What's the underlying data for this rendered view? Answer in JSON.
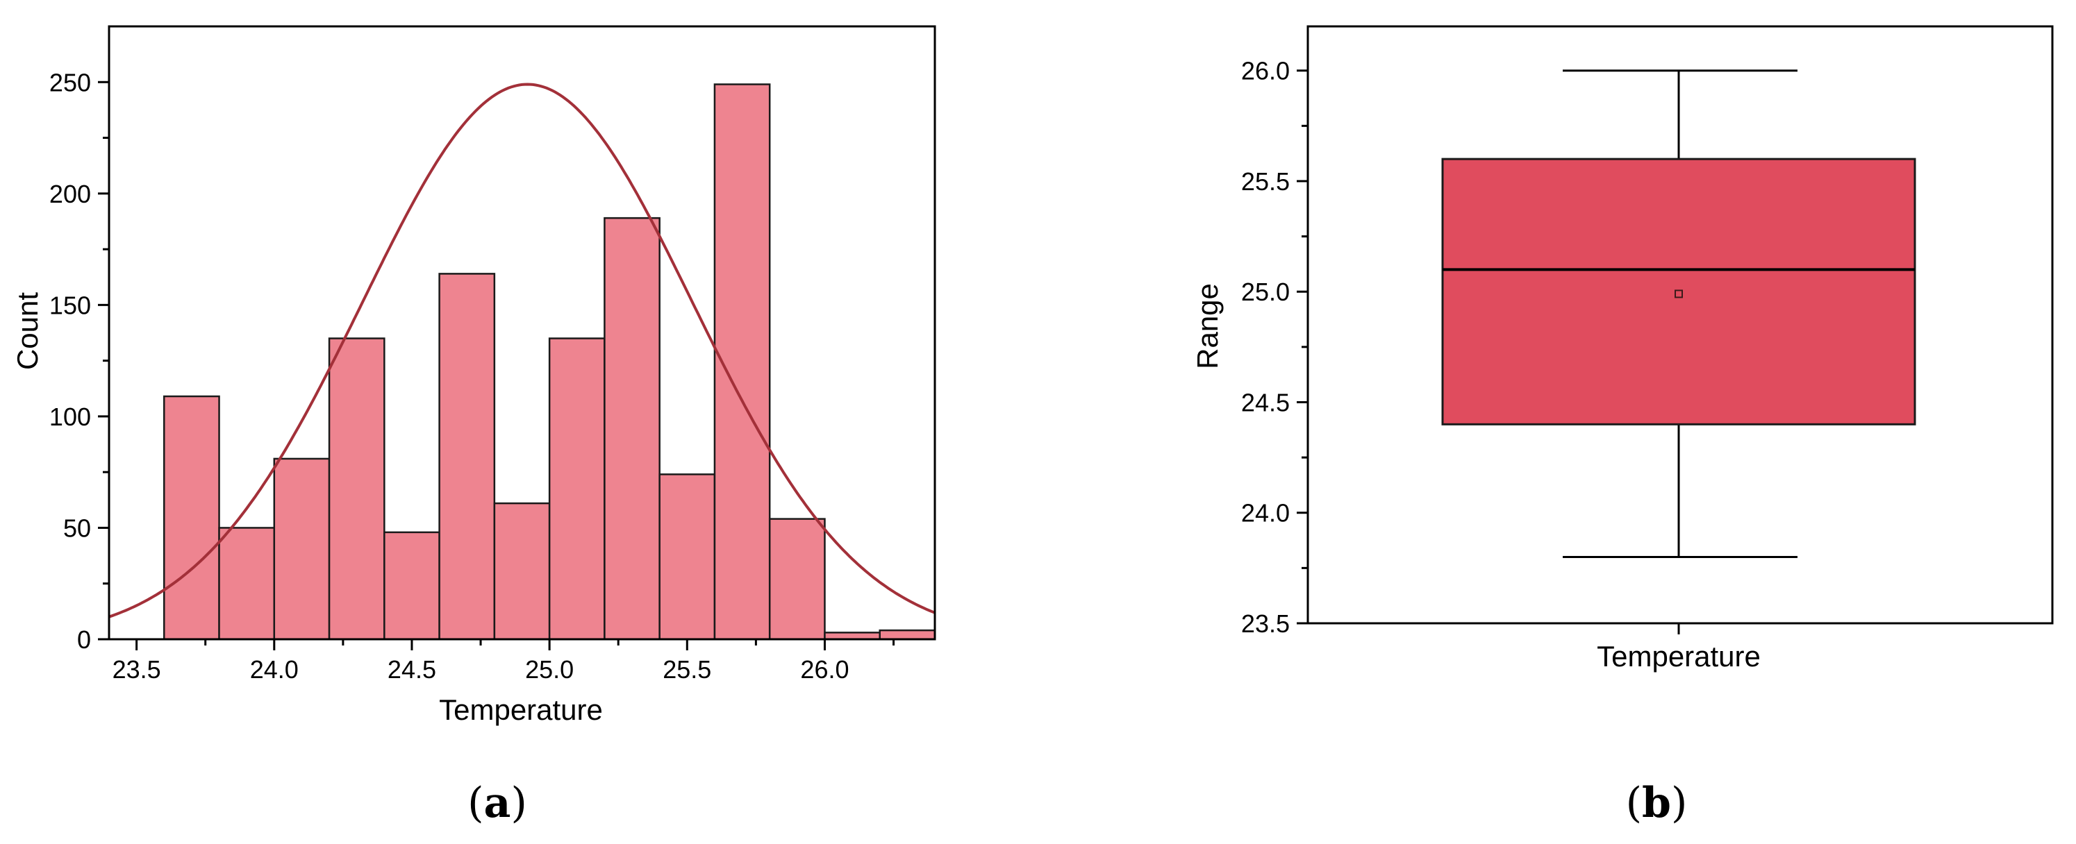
{
  "chart_data": [
    {
      "type": "bar",
      "subtype": "histogram",
      "panel_label": {
        "open": "(",
        "letter": "a",
        "close": ")"
      },
      "xlabel": "Temperature",
      "ylabel": "Count",
      "xlim": [
        23.4,
        26.4
      ],
      "ylim": [
        0,
        275
      ],
      "xticks": [
        "23.5",
        "24.0",
        "24.5",
        "25.0",
        "25.5",
        "26.0"
      ],
      "yticks": [
        "0",
        "50",
        "100",
        "150",
        "200",
        "250"
      ],
      "bins": [
        {
          "x0": 23.6,
          "x1": 23.8,
          "count": 109
        },
        {
          "x0": 23.8,
          "x1": 24.0,
          "count": 50
        },
        {
          "x0": 24.0,
          "x1": 24.2,
          "count": 81
        },
        {
          "x0": 24.2,
          "x1": 24.4,
          "count": 135
        },
        {
          "x0": 24.4,
          "x1": 24.6,
          "count": 48
        },
        {
          "x0": 24.6,
          "x1": 24.8,
          "count": 164
        },
        {
          "x0": 24.8,
          "x1": 25.0,
          "count": 61
        },
        {
          "x0": 25.0,
          "x1": 25.2,
          "count": 135
        },
        {
          "x0": 25.2,
          "x1": 25.4,
          "count": 189
        },
        {
          "x0": 25.4,
          "x1": 25.6,
          "count": 74
        },
        {
          "x0": 25.6,
          "x1": 25.8,
          "count": 249
        },
        {
          "x0": 25.8,
          "x1": 26.0,
          "count": 54
        },
        {
          "x0": 26.0,
          "x1": 26.2,
          "count": 3
        },
        {
          "x0": 26.2,
          "x1": 26.4,
          "count": 4
        }
      ],
      "fit_curve": {
        "type": "normal",
        "mean": 24.92,
        "sd": 0.6,
        "peak": 249
      },
      "bar_color": "#ee8490",
      "curve_color": "#a33039",
      "grid": false
    },
    {
      "type": "boxplot",
      "panel_label": {
        "open": "(",
        "letter": "b",
        "close": ")"
      },
      "xlabel": "Temperature",
      "ylabel": "Range",
      "ylim": [
        23.5,
        26.2
      ],
      "yticks": [
        "23.5",
        "24.0",
        "24.5",
        "25.0",
        "25.5",
        "26.0"
      ],
      "box": {
        "category": "Temperature",
        "whisker_low": 23.8,
        "q1": 24.4,
        "median": 25.1,
        "q3": 25.6,
        "whisker_high": 26.0,
        "mean": 24.99
      },
      "box_color": "#e04c5e",
      "grid": false
    }
  ]
}
